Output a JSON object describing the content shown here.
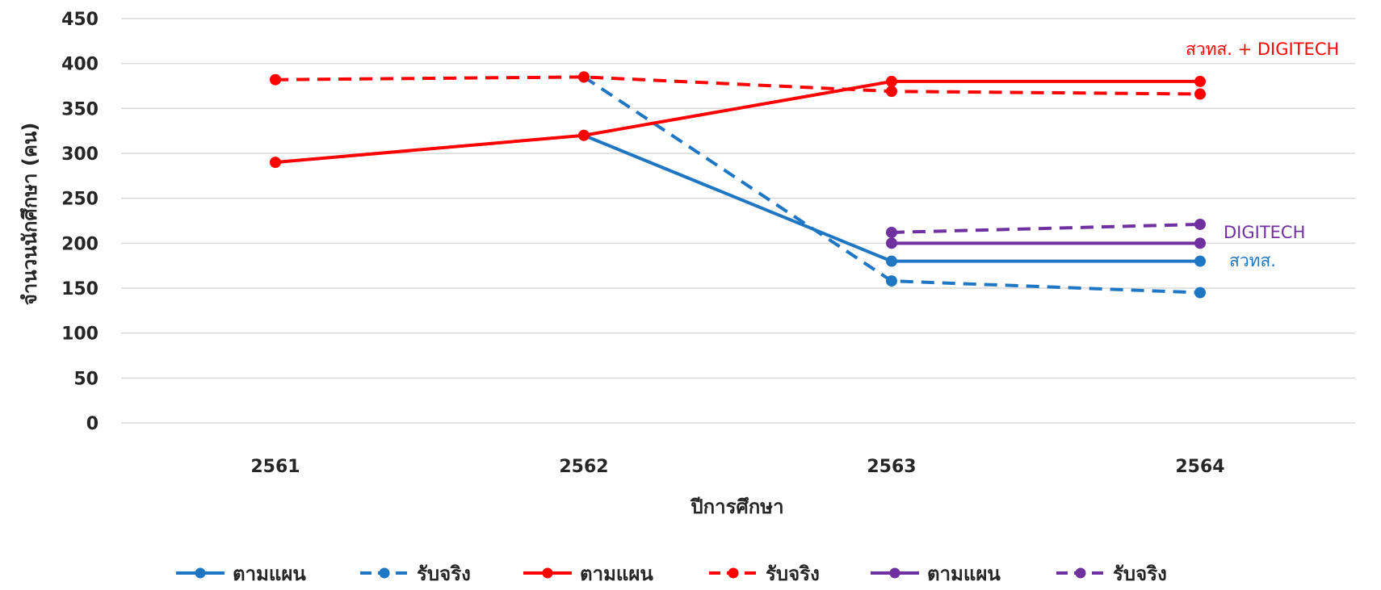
{
  "chart_data": {
    "type": "line",
    "title": "",
    "xlabel": "ปีการศึกษา",
    "ylabel": "จำนวนนักศึกษา (คน)",
    "categories": [
      "2561",
      "2562",
      "2563",
      "2564"
    ],
    "ylim": [
      0,
      450
    ],
    "yticks": [
      0,
      50,
      100,
      150,
      200,
      250,
      300,
      350,
      400,
      450
    ],
    "grid": true,
    "legend_position": "bottom",
    "series": [
      {
        "name": "ตามแผน",
        "color": "#1F77C4",
        "dashed": false,
        "values": [
          null,
          320,
          180,
          180
        ]
      },
      {
        "name": "รับจริง",
        "color": "#1F77C4",
        "dashed": true,
        "values": [
          null,
          385,
          158,
          145
        ]
      },
      {
        "name": "ตามแผน",
        "color": "#FF0000",
        "dashed": false,
        "values": [
          290,
          320,
          380,
          380
        ]
      },
      {
        "name": "รับจริง",
        "color": "#FF0000",
        "dashed": true,
        "values": [
          382,
          385,
          369,
          366
        ]
      },
      {
        "name": "ตามแผน",
        "color": "#7030A0",
        "dashed": false,
        "values": [
          null,
          null,
          200,
          200
        ]
      },
      {
        "name": "รับจริง",
        "color": "#7030A0",
        "dashed": true,
        "values": [
          null,
          null,
          212,
          221
        ]
      }
    ],
    "annotations": [
      {
        "text": "สวทส. + DIGITECH",
        "color": "#FF0000",
        "near_series": 3
      },
      {
        "text": "DIGITECH",
        "color": "#7030A0",
        "near_series": 5
      },
      {
        "text": "สวทส.",
        "color": "#1F77C4",
        "near_series": 0
      }
    ]
  }
}
